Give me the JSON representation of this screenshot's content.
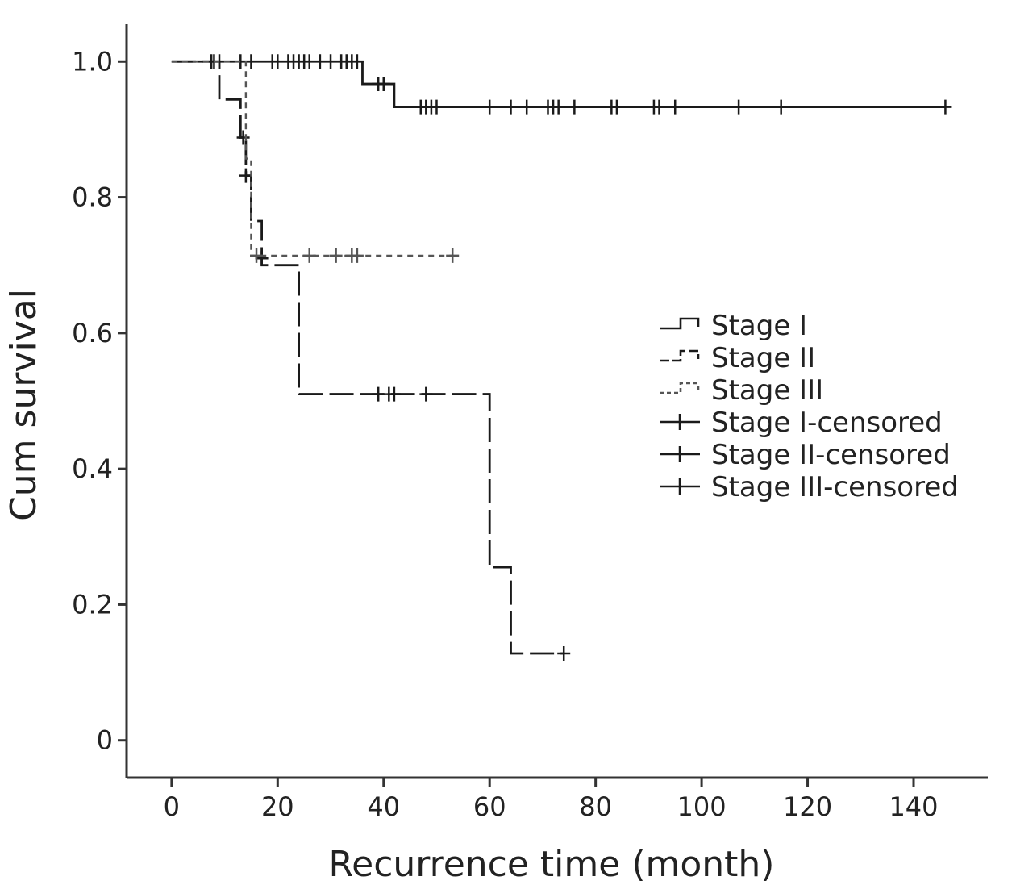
{
  "chart_data": {
    "type": "line",
    "subtype": "kaplan-meier step",
    "title": "",
    "xlabel": "Recurrence time (month)",
    "ylabel": "Cum survival",
    "xlim": [
      -8.5,
      154
    ],
    "ylim": [
      -0.055,
      1.055
    ],
    "x_ticks": [
      0,
      20,
      40,
      60,
      80,
      100,
      120,
      140
    ],
    "x_tick_labels": [
      "0",
      "20",
      "40",
      "60",
      "80",
      "100",
      "120",
      "140"
    ],
    "y_ticks": [
      0,
      0.2,
      0.4,
      0.6,
      0.8,
      1.0
    ],
    "y_tick_labels": [
      "0",
      "0.2",
      "0.4",
      "0.6",
      "0.8",
      "1.0"
    ],
    "grid": false,
    "legend_position": "right-middle",
    "legend": [
      "Stage I",
      "Stage II",
      "Stage III",
      "Stage I-censored",
      "Stage II-censored",
      "Stage III-censored"
    ],
    "series": [
      {
        "name": "Stage I",
        "style": "solid",
        "color": "#1a1a1a",
        "steps": [
          [
            0,
            1.0
          ],
          [
            36,
            0.967
          ],
          [
            42,
            0.933
          ],
          [
            146,
            0.933
          ]
        ],
        "censored": [
          [
            7.5,
            1.0
          ],
          [
            8,
            1.0
          ],
          [
            9,
            1.0
          ],
          [
            13,
            1.0
          ],
          [
            15,
            1.0
          ],
          [
            19,
            1.0
          ],
          [
            20,
            1.0
          ],
          [
            22,
            1.0
          ],
          [
            23,
            1.0
          ],
          [
            24,
            1.0
          ],
          [
            25,
            1.0
          ],
          [
            26,
            1.0
          ],
          [
            28,
            1.0
          ],
          [
            30,
            1.0
          ],
          [
            32,
            1.0
          ],
          [
            33,
            1.0
          ],
          [
            34,
            1.0
          ],
          [
            35,
            1.0
          ],
          [
            39,
            0.967
          ],
          [
            40,
            0.967
          ],
          [
            47,
            0.933
          ],
          [
            48,
            0.933
          ],
          [
            49,
            0.933
          ],
          [
            50,
            0.933
          ],
          [
            60,
            0.933
          ],
          [
            64,
            0.933
          ],
          [
            67,
            0.933
          ],
          [
            71,
            0.933
          ],
          [
            72,
            0.933
          ],
          [
            73,
            0.933
          ],
          [
            76,
            0.933
          ],
          [
            83,
            0.933
          ],
          [
            84,
            0.933
          ],
          [
            91,
            0.933
          ],
          [
            92,
            0.933
          ],
          [
            95,
            0.933
          ],
          [
            107,
            0.933
          ],
          [
            115,
            0.933
          ],
          [
            146,
            0.933
          ]
        ]
      },
      {
        "name": "Stage II",
        "style": "dashed",
        "color": "#1a1a1a",
        "steps": [
          [
            0,
            1.0
          ],
          [
            9,
            0.944
          ],
          [
            13,
            0.888
          ],
          [
            14,
            0.832
          ],
          [
            15,
            0.765
          ],
          [
            17,
            0.7
          ],
          [
            24,
            0.51
          ],
          [
            60,
            0.255
          ],
          [
            64,
            0.128
          ],
          [
            74,
            0.128
          ]
        ],
        "censored": [
          [
            13.5,
            0.888
          ],
          [
            14,
            0.832
          ],
          [
            17,
            0.71
          ],
          [
            39,
            0.51
          ],
          [
            41,
            0.51
          ],
          [
            42,
            0.51
          ],
          [
            48,
            0.51
          ],
          [
            74,
            0.128
          ]
        ]
      },
      {
        "name": "Stage III",
        "style": "dotted",
        "color": "#555555",
        "steps": [
          [
            0,
            1.0
          ],
          [
            12.5,
            1.0
          ],
          [
            14,
            0.857
          ],
          [
            15,
            0.714
          ],
          [
            53,
            0.714
          ]
        ],
        "censored": [
          [
            16,
            0.714
          ],
          [
            26,
            0.714
          ],
          [
            31,
            0.714
          ],
          [
            34,
            0.714
          ],
          [
            35,
            0.714
          ],
          [
            53,
            0.714
          ]
        ]
      }
    ]
  }
}
